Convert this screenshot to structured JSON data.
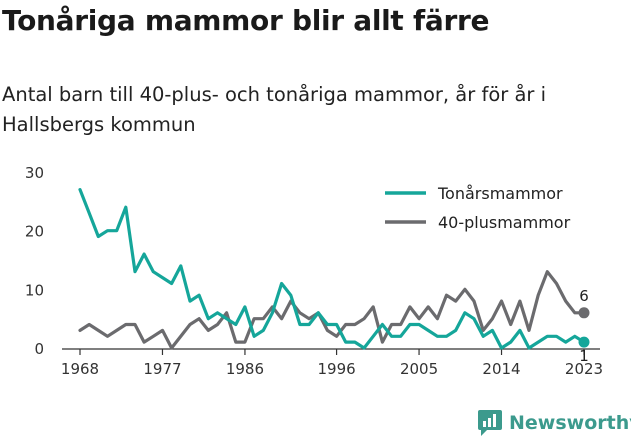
{
  "header": {
    "title": "Tonåriga mammor blir allt färre",
    "subtitle": "Antal barn till 40-plus- och tonåriga mammor, år för år i Hallsbergs kommun"
  },
  "brand": {
    "name": "Newsworthy",
    "icon": "newsworthy-logo-icon",
    "color": "#3c9a8d"
  },
  "chart_data": {
    "type": "line",
    "title": "Tonåriga mammor blir allt färre",
    "subtitle": "Antal barn till 40-plus- och tonåriga mammor, år för år i Hallsbergs kommun",
    "xlabel": "",
    "ylabel": "",
    "xlim": [
      1968,
      2023
    ],
    "ylim": [
      0,
      30
    ],
    "x_ticks": [
      1968,
      1977,
      1986,
      1996,
      2005,
      2014,
      2023
    ],
    "x_tick_labels": [
      "1968",
      "1977",
      "1986",
      "1996",
      "2005",
      "2014",
      "2023"
    ],
    "y_ticks": [
      0,
      10,
      20,
      30
    ],
    "y_tick_labels": [
      "0",
      "10",
      "20",
      "30"
    ],
    "grid": "none",
    "legend_position": "top-right",
    "x": [
      1968,
      1969,
      1970,
      1971,
      1972,
      1973,
      1974,
      1975,
      1976,
      1977,
      1978,
      1979,
      1980,
      1981,
      1982,
      1983,
      1984,
      1985,
      1986,
      1987,
      1988,
      1989,
      1990,
      1991,
      1992,
      1993,
      1994,
      1995,
      1996,
      1997,
      1998,
      1999,
      2000,
      2001,
      2002,
      2003,
      2004,
      2005,
      2006,
      2007,
      2008,
      2009,
      2010,
      2011,
      2012,
      2013,
      2014,
      2015,
      2016,
      2017,
      2018,
      2019,
      2020,
      2021,
      2022,
      2023
    ],
    "series": [
      {
        "name": "Tonårsmammor",
        "color": "#15a69a",
        "values": [
          27,
          23,
          19,
          20,
          20,
          24,
          13,
          16,
          13,
          12,
          11,
          14,
          8,
          9,
          5,
          6,
          5,
          4,
          7,
          2,
          3,
          6,
          11,
          9,
          4,
          4,
          6,
          4,
          4,
          1,
          1,
          0,
          2,
          4,
          2,
          2,
          4,
          4,
          3,
          2,
          2,
          3,
          6,
          5,
          2,
          3,
          0,
          1,
          3,
          0,
          1,
          2,
          2,
          1,
          2,
          1
        ],
        "end_label": "1"
      },
      {
        "name": "40-plusmammor",
        "color": "#6b6b6e",
        "values": [
          3,
          4,
          3,
          2,
          3,
          4,
          4,
          1,
          2,
          3,
          0,
          2,
          4,
          5,
          3,
          4,
          6,
          1,
          1,
          5,
          5,
          7,
          5,
          8,
          6,
          5,
          6,
          3,
          2,
          4,
          4,
          5,
          7,
          1,
          4,
          4,
          7,
          5,
          7,
          5,
          9,
          8,
          10,
          8,
          3,
          5,
          8,
          4,
          8,
          3,
          9,
          13,
          11,
          8,
          6,
          6
        ],
        "end_label": "6"
      }
    ]
  }
}
